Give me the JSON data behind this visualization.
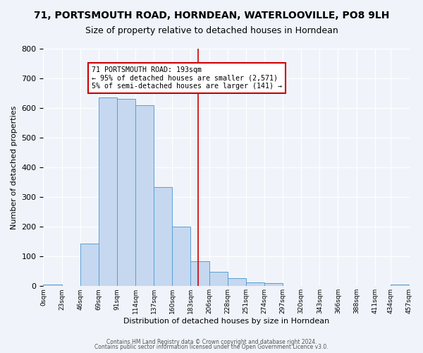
{
  "title": "71, PORTSMOUTH ROAD, HORNDEAN, WATERLOOVILLE, PO8 9LH",
  "subtitle": "Size of property relative to detached houses in Horndean",
  "xlabel": "Distribution of detached houses by size in Horndean",
  "ylabel": "Number of detached properties",
  "bar_values": [
    5,
    0,
    143,
    636,
    630,
    609,
    333,
    201,
    84,
    48,
    27,
    13,
    10,
    0,
    0,
    0,
    0,
    0,
    0,
    5
  ],
  "bin_edges": [
    0,
    23,
    46,
    69,
    92,
    115,
    138,
    161,
    184,
    207,
    230,
    253,
    276,
    299,
    322,
    345,
    368,
    391,
    414,
    434,
    457
  ],
  "tick_labels": [
    "0sqm",
    "23sqm",
    "46sqm",
    "69sqm",
    "91sqm",
    "114sqm",
    "137sqm",
    "160sqm",
    "183sqm",
    "206sqm",
    "228sqm",
    "251sqm",
    "274sqm",
    "297sqm",
    "320sqm",
    "343sqm",
    "366sqm",
    "388sqm",
    "411sqm",
    "434sqm",
    "457sqm"
  ],
  "bar_color": "#c5d8f0",
  "bar_edge_color": "#5a9fd4",
  "vline_x": 193,
  "vline_color": "#cc0000",
  "annotation_text": "71 PORTSMOUTH ROAD: 193sqm\n← 95% of detached houses are smaller (2,571)\n5% of semi-detached houses are larger (141) →",
  "annotation_box_color": "#ffffff",
  "annotation_box_edge": "#cc0000",
  "ylim": [
    0,
    800
  ],
  "yticks": [
    0,
    100,
    200,
    300,
    400,
    500,
    600,
    700,
    800
  ],
  "footer1": "Contains HM Land Registry data © Crown copyright and database right 2024.",
  "footer2": "Contains public sector information licensed under the Open Government Licence v3.0.",
  "bg_color": "#f0f4fa",
  "title_fontsize": 10,
  "subtitle_fontsize": 9
}
